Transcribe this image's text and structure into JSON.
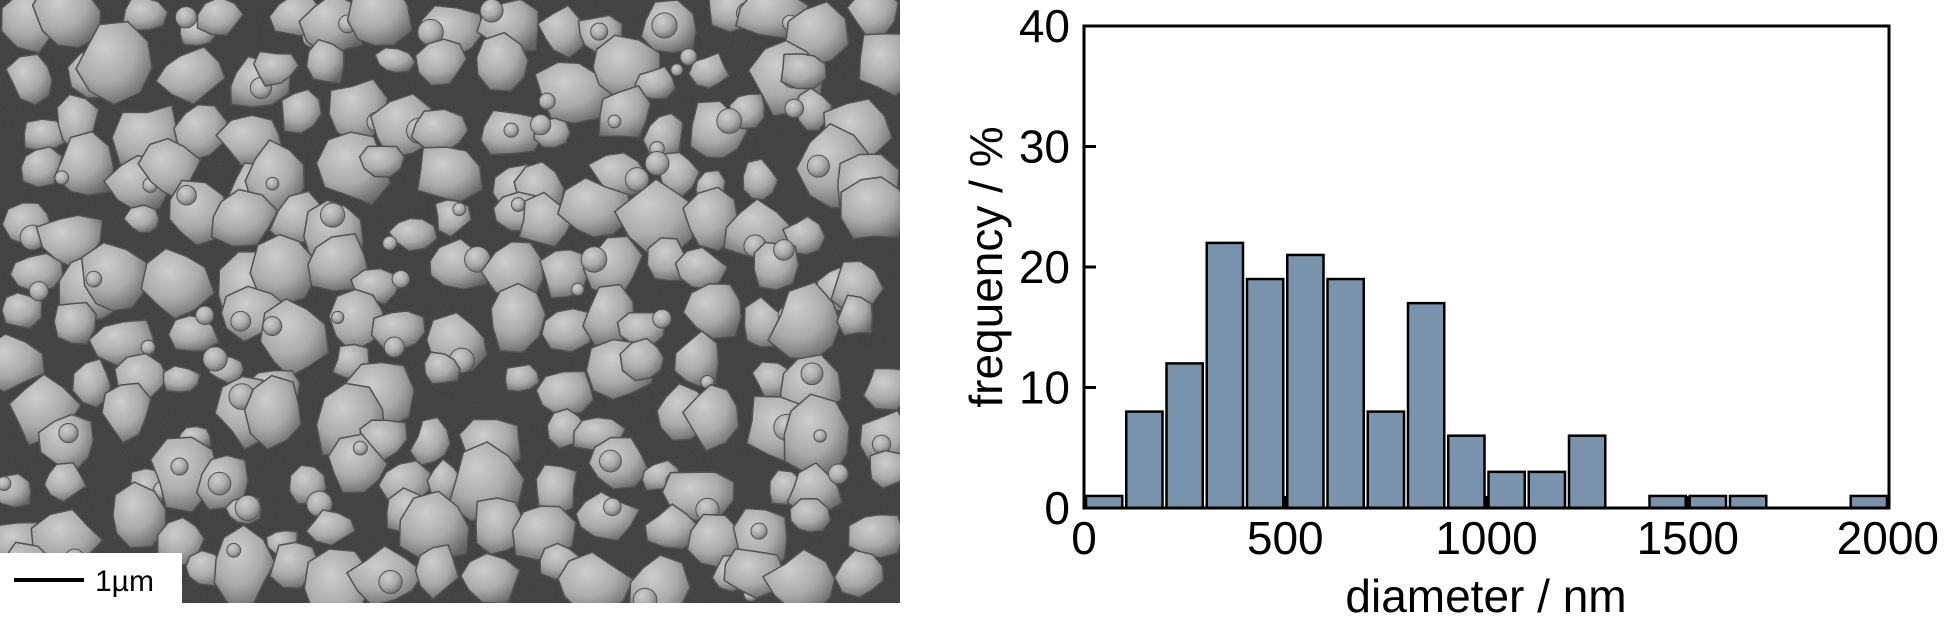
{
  "image": {
    "scale_bar_label": "1µm"
  },
  "chart_data": {
    "type": "bar",
    "xlabel": "diameter / nm",
    "ylabel": "frequency / %",
    "xlim": [
      0,
      2000
    ],
    "ylim": [
      0,
      40
    ],
    "xticks": [
      0,
      500,
      1000,
      1500,
      2000
    ],
    "yticks": [
      0,
      10,
      20,
      30,
      40
    ],
    "bin_width": 100,
    "x": [
      0,
      100,
      200,
      300,
      400,
      500,
      600,
      700,
      800,
      900,
      1000,
      1100,
      1200,
      1300,
      1400,
      1500,
      1600,
      1700,
      1800,
      1900
    ],
    "values": [
      1,
      8,
      12,
      22,
      19,
      21,
      19,
      8,
      17,
      6,
      3,
      3,
      6,
      0,
      1,
      1,
      1,
      0,
      0,
      1
    ],
    "bar_color": "#7a93ad",
    "grid": false
  }
}
